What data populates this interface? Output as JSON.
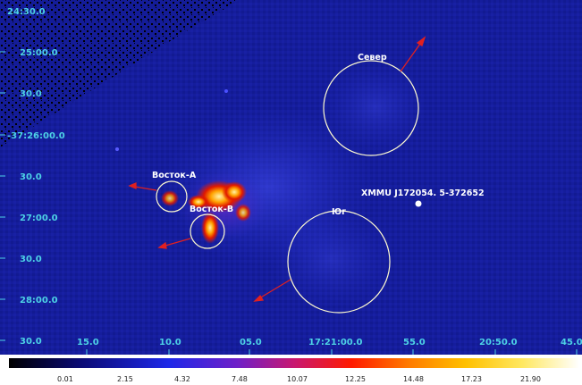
{
  "image": {
    "description_free": true,
    "colors": {
      "background": "#141c9a",
      "label_color": "#4dd2e6",
      "region_color": "#fffbd0",
      "arrow_color": "#e02020"
    }
  },
  "dec_ticks": [
    "24:30.0",
    "25:00.0",
    "30.0",
    "-37:26:00.0",
    "30.0",
    "27:00.0",
    "30.0",
    "28:00.0",
    "30.0"
  ],
  "ra_ticks": [
    "15.0",
    "10.0",
    "05.0",
    "17:21:00.0",
    "55.0",
    "20:50.0",
    "45.0"
  ],
  "regions": {
    "north": "Север",
    "south": "Юг",
    "east_a": "Восток-А",
    "east_b": "Восток-В"
  },
  "source": {
    "label": "XMMU J172054. 5-372652"
  },
  "colorbar": {
    "labels": [
      "0.01",
      "2.15",
      "4.32",
      "7.48",
      "10.07",
      "12.25",
      "14.48",
      "17.23",
      "21.90"
    ]
  }
}
